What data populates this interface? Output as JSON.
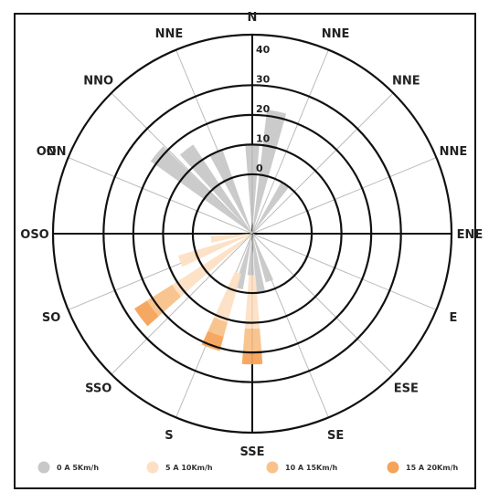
{
  "chart_data": {
    "type": "wind-rose",
    "title": "",
    "directions": [
      "N",
      "NNE",
      "NNE",
      "NNE",
      "ENE",
      "E",
      "ESE",
      "SE",
      "SSE",
      "S",
      "SSO",
      "SO",
      "OSO",
      "O",
      "ONN",
      "NNO",
      "NNE"
    ],
    "radial_ticks": [
      "0",
      "10",
      "20",
      "30",
      "40"
    ],
    "rlim": [
      -20,
      47
    ],
    "grid": true,
    "legend_position": "bottom",
    "legend": [
      {
        "label": "0 A 5Km/h",
        "color": "#c8c8c8"
      },
      {
        "label": "5 A 10Km/h",
        "color": "#fde0c4"
      },
      {
        "label": "10 A 15Km/h",
        "color": "#f8c28a"
      },
      {
        "label": "15 A 20Km/h",
        "color": "#f5a35a"
      }
    ],
    "sectors": [
      {
        "direction_deg": 0,
        "speed_bin": "0 A 5Km/h",
        "from": -20,
        "to": 10
      },
      {
        "direction_deg": 11.25,
        "speed_bin": "0 A 5Km/h",
        "from": -20,
        "to": 22
      },
      {
        "direction_deg": 33.75,
        "speed_bin": "0 A 5Km/h",
        "from": -20,
        "to": 0
      },
      {
        "direction_deg": 310,
        "speed_bin": "0 A 5Km/h",
        "from": -20,
        "to": 22
      },
      {
        "direction_deg": 322,
        "speed_bin": "0 A 5Km/h",
        "from": -20,
        "to": 16
      },
      {
        "direction_deg": 336,
        "speed_bin": "0 A 5Km/h",
        "from": -20,
        "to": 10
      },
      {
        "direction_deg": 160,
        "speed_bin": "0 A 5Km/h",
        "from": -20,
        "to": -3
      },
      {
        "direction_deg": 172,
        "speed_bin": "0 A 5Km/h",
        "from": -20,
        "to": 0
      },
      {
        "direction_deg": 182,
        "speed_bin": "0 A 5Km/h",
        "from": -20,
        "to": -6
      },
      {
        "direction_deg": 194,
        "speed_bin": "0 A 5Km/h",
        "from": -20,
        "to": -1
      },
      {
        "direction_deg": 180,
        "speed_bin": "5 A 10Km/h",
        "from": -6,
        "to": 12
      },
      {
        "direction_deg": 200,
        "speed_bin": "5 A 10Km/h",
        "from": -6,
        "to": 11
      },
      {
        "direction_deg": 233,
        "speed_bin": "5 A 10Km/h",
        "from": -20,
        "to": 12
      },
      {
        "direction_deg": 249,
        "speed_bin": "5 A 10Km/h",
        "from": -20,
        "to": 6
      },
      {
        "direction_deg": 262,
        "speed_bin": "5 A 10Km/h",
        "from": -20,
        "to": -6
      },
      {
        "direction_deg": 180,
        "speed_bin": "10 A 15Km/h",
        "from": 12,
        "to": 20
      },
      {
        "direction_deg": 200,
        "speed_bin": "10 A 15Km/h",
        "from": 11,
        "to": 16
      },
      {
        "direction_deg": 233,
        "speed_bin": "10 A 15Km/h",
        "from": 12,
        "to": 22
      },
      {
        "direction_deg": 180,
        "speed_bin": "15 A 20Km/h",
        "from": 20,
        "to": 24
      },
      {
        "direction_deg": 200,
        "speed_bin": "15 A 20Km/h",
        "from": 16,
        "to": 21
      },
      {
        "direction_deg": 233,
        "speed_bin": "15 A 20Km/h",
        "from": 22,
        "to": 27
      }
    ]
  }
}
